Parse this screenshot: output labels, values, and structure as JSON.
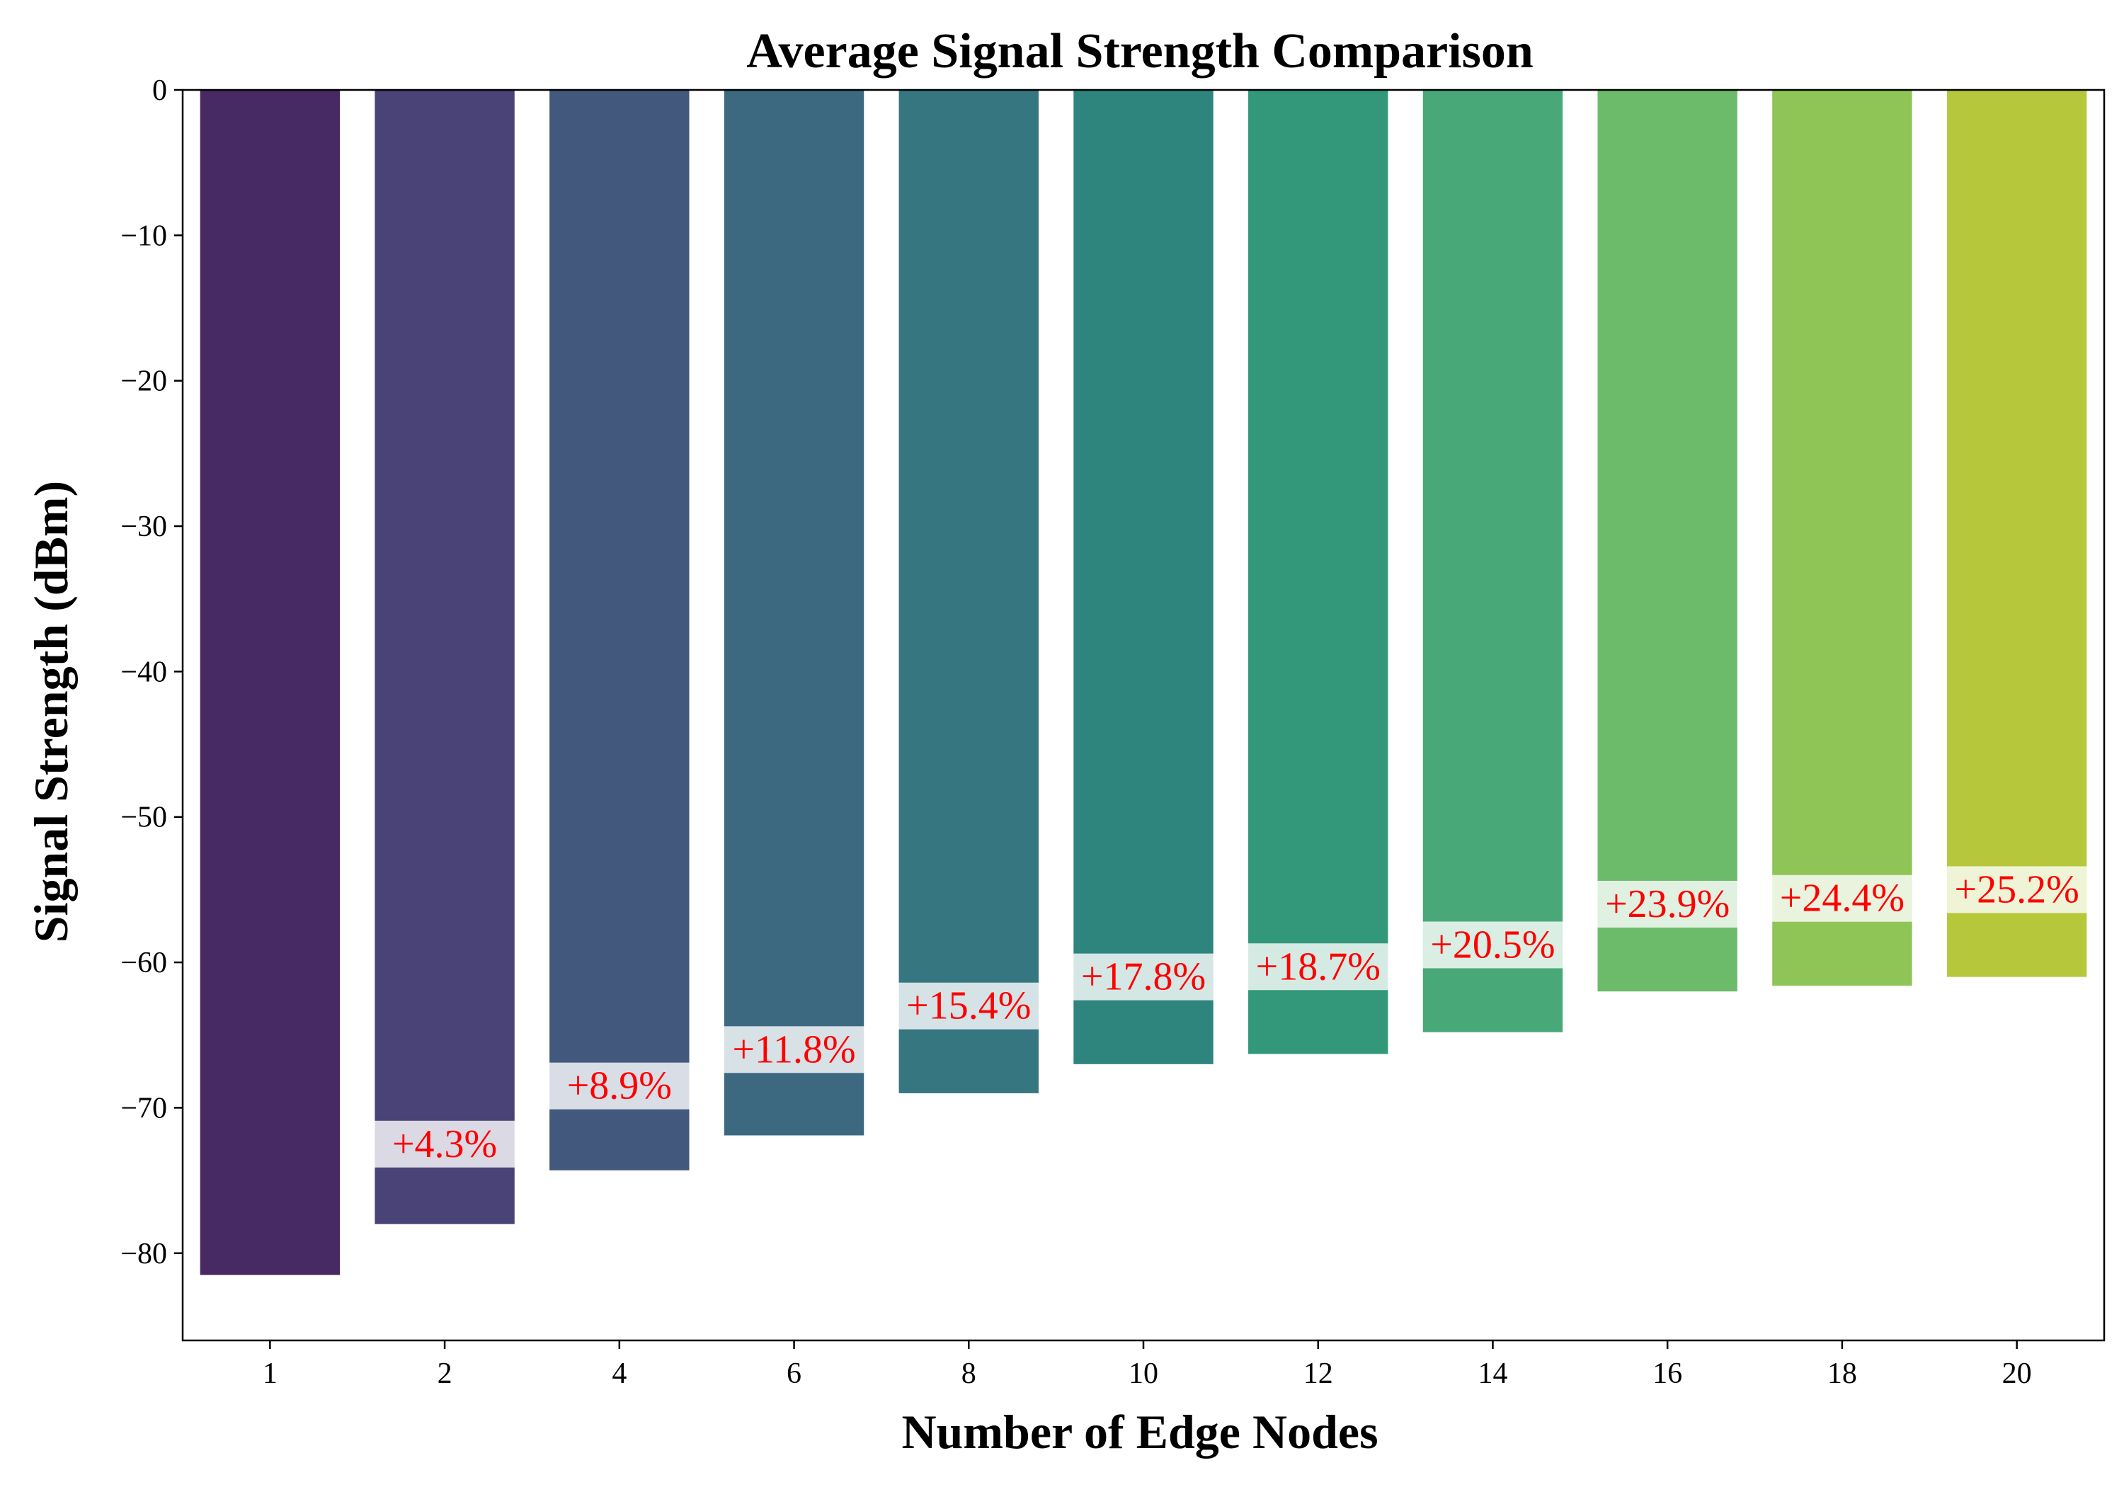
{
  "chart_data": {
    "type": "bar",
    "title": "Average Signal Strength Comparison",
    "xlabel": "Number of Edge Nodes",
    "ylabel": "Signal Strength (dBm)",
    "categories": [
      "1",
      "2",
      "4",
      "6",
      "8",
      "10",
      "12",
      "14",
      "16",
      "18",
      "20"
    ],
    "values": [
      -81.5,
      -78.0,
      -74.3,
      -71.9,
      -69.0,
      -67.0,
      -66.3,
      -64.8,
      -62.0,
      -61.6,
      -61.0
    ],
    "annotations": [
      "",
      "+4.3%",
      "+8.9%",
      "+11.8%",
      "+15.4%",
      "+17.8%",
      "+18.7%",
      "+20.5%",
      "+23.9%",
      "+24.4%",
      "+25.2%"
    ],
    "annotation_positions": [
      null,
      -72.5,
      -68.5,
      -66.0,
      -63.0,
      -61.0,
      -60.3,
      -58.8,
      -56.0,
      -55.6,
      -55.0
    ],
    "yticks": [
      0,
      -10,
      -20,
      -30,
      -40,
      -50,
      -60,
      -70,
      -80
    ],
    "ytick_labels": [
      "0",
      "−10",
      "−20",
      "−30",
      "−40",
      "−50",
      "−60",
      "−70",
      "−80"
    ],
    "ylim": [
      -86,
      0
    ],
    "grid": false,
    "legend": "none",
    "colors": [
      "#472a63",
      "#4a4377",
      "#43587d",
      "#3c6880",
      "#357680",
      "#2e857e",
      "#339879",
      "#49a877",
      "#6cbb6b",
      "#8fc457",
      "#b6c73b"
    ],
    "annotation_color": "#ff0000",
    "annotation_box_color": "#ffffff"
  }
}
